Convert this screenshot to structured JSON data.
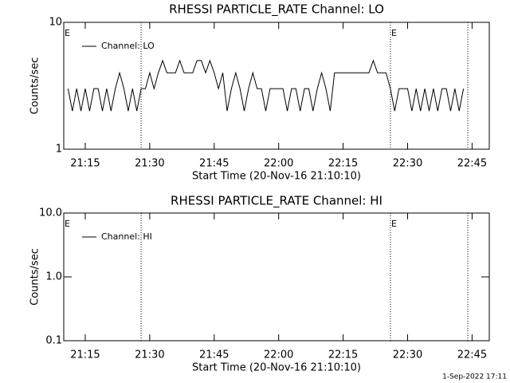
{
  "chart_data": [
    {
      "type": "line",
      "title": "RHESSI PARTICLE_RATE Channel: LO",
      "xlabel": "Start Time (20-Nov-16 21:10:10)",
      "ylabel": "Counts/sec",
      "x": [
        "21:11",
        "21:12",
        "21:13",
        "21:14",
        "21:15",
        "21:16",
        "21:17",
        "21:18",
        "21:19",
        "21:20",
        "21:21",
        "21:22",
        "21:23",
        "21:24",
        "21:25",
        "21:26",
        "21:27",
        "21:28",
        "21:29",
        "21:30",
        "21:31",
        "21:32",
        "21:33",
        "21:34",
        "21:35",
        "21:36",
        "21:37",
        "21:38",
        "21:39",
        "21:40",
        "21:41",
        "21:42",
        "21:43",
        "21:44",
        "21:45",
        "21:46",
        "21:47",
        "21:48",
        "21:49",
        "21:50",
        "21:51",
        "21:52",
        "21:53",
        "21:54",
        "21:55",
        "21:56",
        "21:57",
        "21:58",
        "21:59",
        "22:00",
        "22:01",
        "22:02",
        "22:03",
        "22:04",
        "22:05",
        "22:06",
        "22:07",
        "22:08",
        "22:09",
        "22:10",
        "22:11",
        "22:12",
        "22:13",
        "22:14",
        "22:15",
        "22:16",
        "22:17",
        "22:18",
        "22:19",
        "22:20",
        "22:21",
        "22:22",
        "22:23",
        "22:24",
        "22:25",
        "22:26",
        "22:27",
        "22:28",
        "22:29",
        "22:30",
        "22:31",
        "22:32",
        "22:33",
        "22:34",
        "22:35",
        "22:36",
        "22:37",
        "22:38",
        "22:39",
        "22:40",
        "22:41",
        "22:42",
        "22:43"
      ],
      "series": [
        {
          "name": "Channel: LO",
          "color": "#000000",
          "values": [
            3,
            2,
            3,
            2,
            3,
            2,
            3,
            3,
            2,
            3,
            2,
            3,
            4,
            3,
            2,
            3,
            2,
            3,
            3,
            4,
            3,
            4,
            5,
            4,
            4,
            4,
            5,
            4,
            4,
            4,
            5,
            5,
            4,
            5,
            4,
            3,
            4,
            2,
            3,
            4,
            3,
            2,
            3,
            4,
            3,
            3,
            2,
            3,
            3,
            3,
            3,
            2,
            3,
            3,
            2,
            3,
            3,
            2,
            3,
            4,
            3,
            2,
            4,
            4,
            4,
            4,
            4,
            4,
            4,
            4,
            4,
            5,
            4,
            4,
            4,
            3,
            2,
            3,
            3,
            3,
            2,
            3,
            2,
            3,
            2,
            3,
            2,
            3,
            3,
            2,
            3,
            2,
            3
          ]
        }
      ],
      "xlim": [
        "21:10",
        "22:49"
      ],
      "xticks": [
        "21:15",
        "21:30",
        "21:45",
        "22:00",
        "22:15",
        "22:30",
        "22:45"
      ],
      "ylim": [
        1,
        10
      ],
      "yticks": [
        1,
        10
      ],
      "ylog": true,
      "markers": [
        "21:28",
        "22:26",
        "22:44"
      ],
      "annotations": [
        {
          "text": "E",
          "x": "21:10"
        },
        {
          "text": "E",
          "x": "22:26"
        }
      ]
    },
    {
      "type": "line",
      "title": "RHESSI PARTICLE_RATE Channel: HI",
      "xlabel": "Start Time (20-Nov-16 21:10:10)",
      "ylabel": "Counts/sec",
      "x": [],
      "series": [
        {
          "name": "Channel: HI",
          "color": "#000000",
          "values": []
        }
      ],
      "xlim": [
        "21:10",
        "22:49"
      ],
      "xticks": [
        "21:15",
        "21:30",
        "21:45",
        "22:00",
        "22:15",
        "22:30",
        "22:45"
      ],
      "ylim": [
        0.1,
        10
      ],
      "yticks": [
        0.1,
        {
          "value": 1,
          "label": "1.0"
        },
        {
          "value": 10,
          "label": "10.0"
        }
      ],
      "ylog": true,
      "markers": [
        "21:28",
        "22:26",
        "22:44"
      ],
      "annotations": [
        {
          "text": "E",
          "x": "21:10"
        },
        {
          "text": "E",
          "x": "22:26"
        }
      ]
    }
  ],
  "footer": "1-Sep-2022 17:11"
}
